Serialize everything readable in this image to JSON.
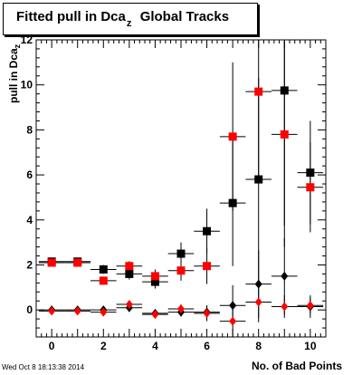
{
  "title": {
    "pre": "Fitted pull in Dca",
    "sub": "z",
    "post": "Global Tracks"
  },
  "footer": {
    "timestamp": "Wed Oct  8 18:13:38 2014"
  },
  "chart_data": {
    "type": "scatter",
    "title": "Fitted pull in Dca_z Global Tracks",
    "xlabel": "No. of Bad Points",
    "ylabel": "pull in Dca_z",
    "xlim": [
      -0.6,
      10.6
    ],
    "ylim": [
      -1.2,
      12
    ],
    "x_ticks": [
      0,
      2,
      4,
      6,
      8,
      10
    ],
    "y_ticks": [
      0,
      2,
      4,
      6,
      8,
      10,
      12
    ],
    "grid": false,
    "legend": "none",
    "series": [
      {
        "color": "#000000",
        "marker": "square",
        "x": [
          0,
          1,
          2,
          3,
          4,
          5,
          6,
          7,
          8,
          9,
          10
        ],
        "y": [
          2.15,
          2.15,
          1.8,
          1.6,
          1.25,
          2.5,
          3.5,
          4.75,
          5.8,
          9.75,
          6.1
        ],
        "yerr": [
          0.12,
          0.15,
          0.2,
          0.25,
          0.3,
          0.5,
          1.0,
          2.8,
          4.5,
          6.0,
          2.3
        ]
      },
      {
        "color": "#ff0000",
        "marker": "square",
        "x": [
          0,
          1,
          2,
          3,
          4,
          5,
          6,
          7,
          8,
          9,
          10
        ],
        "y": [
          2.1,
          2.1,
          1.3,
          1.95,
          1.5,
          1.75,
          1.95,
          7.7,
          9.7,
          7.8,
          5.45
        ],
        "yerr": [
          0.1,
          0.12,
          0.18,
          0.22,
          0.3,
          0.45,
          0.8,
          3.3,
          3.8,
          5.0,
          2.0
        ]
      },
      {
        "color": "#000000",
        "marker": "diamond",
        "x": [
          0,
          1,
          2,
          3,
          4,
          5,
          6,
          7,
          8,
          9,
          10
        ],
        "y": [
          0.0,
          0.0,
          0.0,
          0.1,
          -0.15,
          -0.1,
          -0.1,
          0.2,
          1.15,
          1.5,
          0.15
        ],
        "yerr": [
          0.05,
          0.05,
          0.08,
          0.1,
          0.12,
          0.2,
          0.3,
          0.9,
          1.5,
          1.7,
          0.5
        ]
      },
      {
        "color": "#ff0000",
        "marker": "diamond",
        "x": [
          0,
          1,
          2,
          3,
          4,
          5,
          6,
          7,
          8,
          9,
          10
        ],
        "y": [
          -0.05,
          -0.05,
          -0.1,
          0.25,
          -0.2,
          0.05,
          -0.15,
          -0.5,
          0.35,
          0.15,
          0.2
        ],
        "yerr": [
          0.05,
          0.05,
          0.08,
          0.12,
          0.12,
          0.2,
          0.35,
          0.8,
          0.9,
          0.5,
          0.35
        ]
      }
    ]
  }
}
